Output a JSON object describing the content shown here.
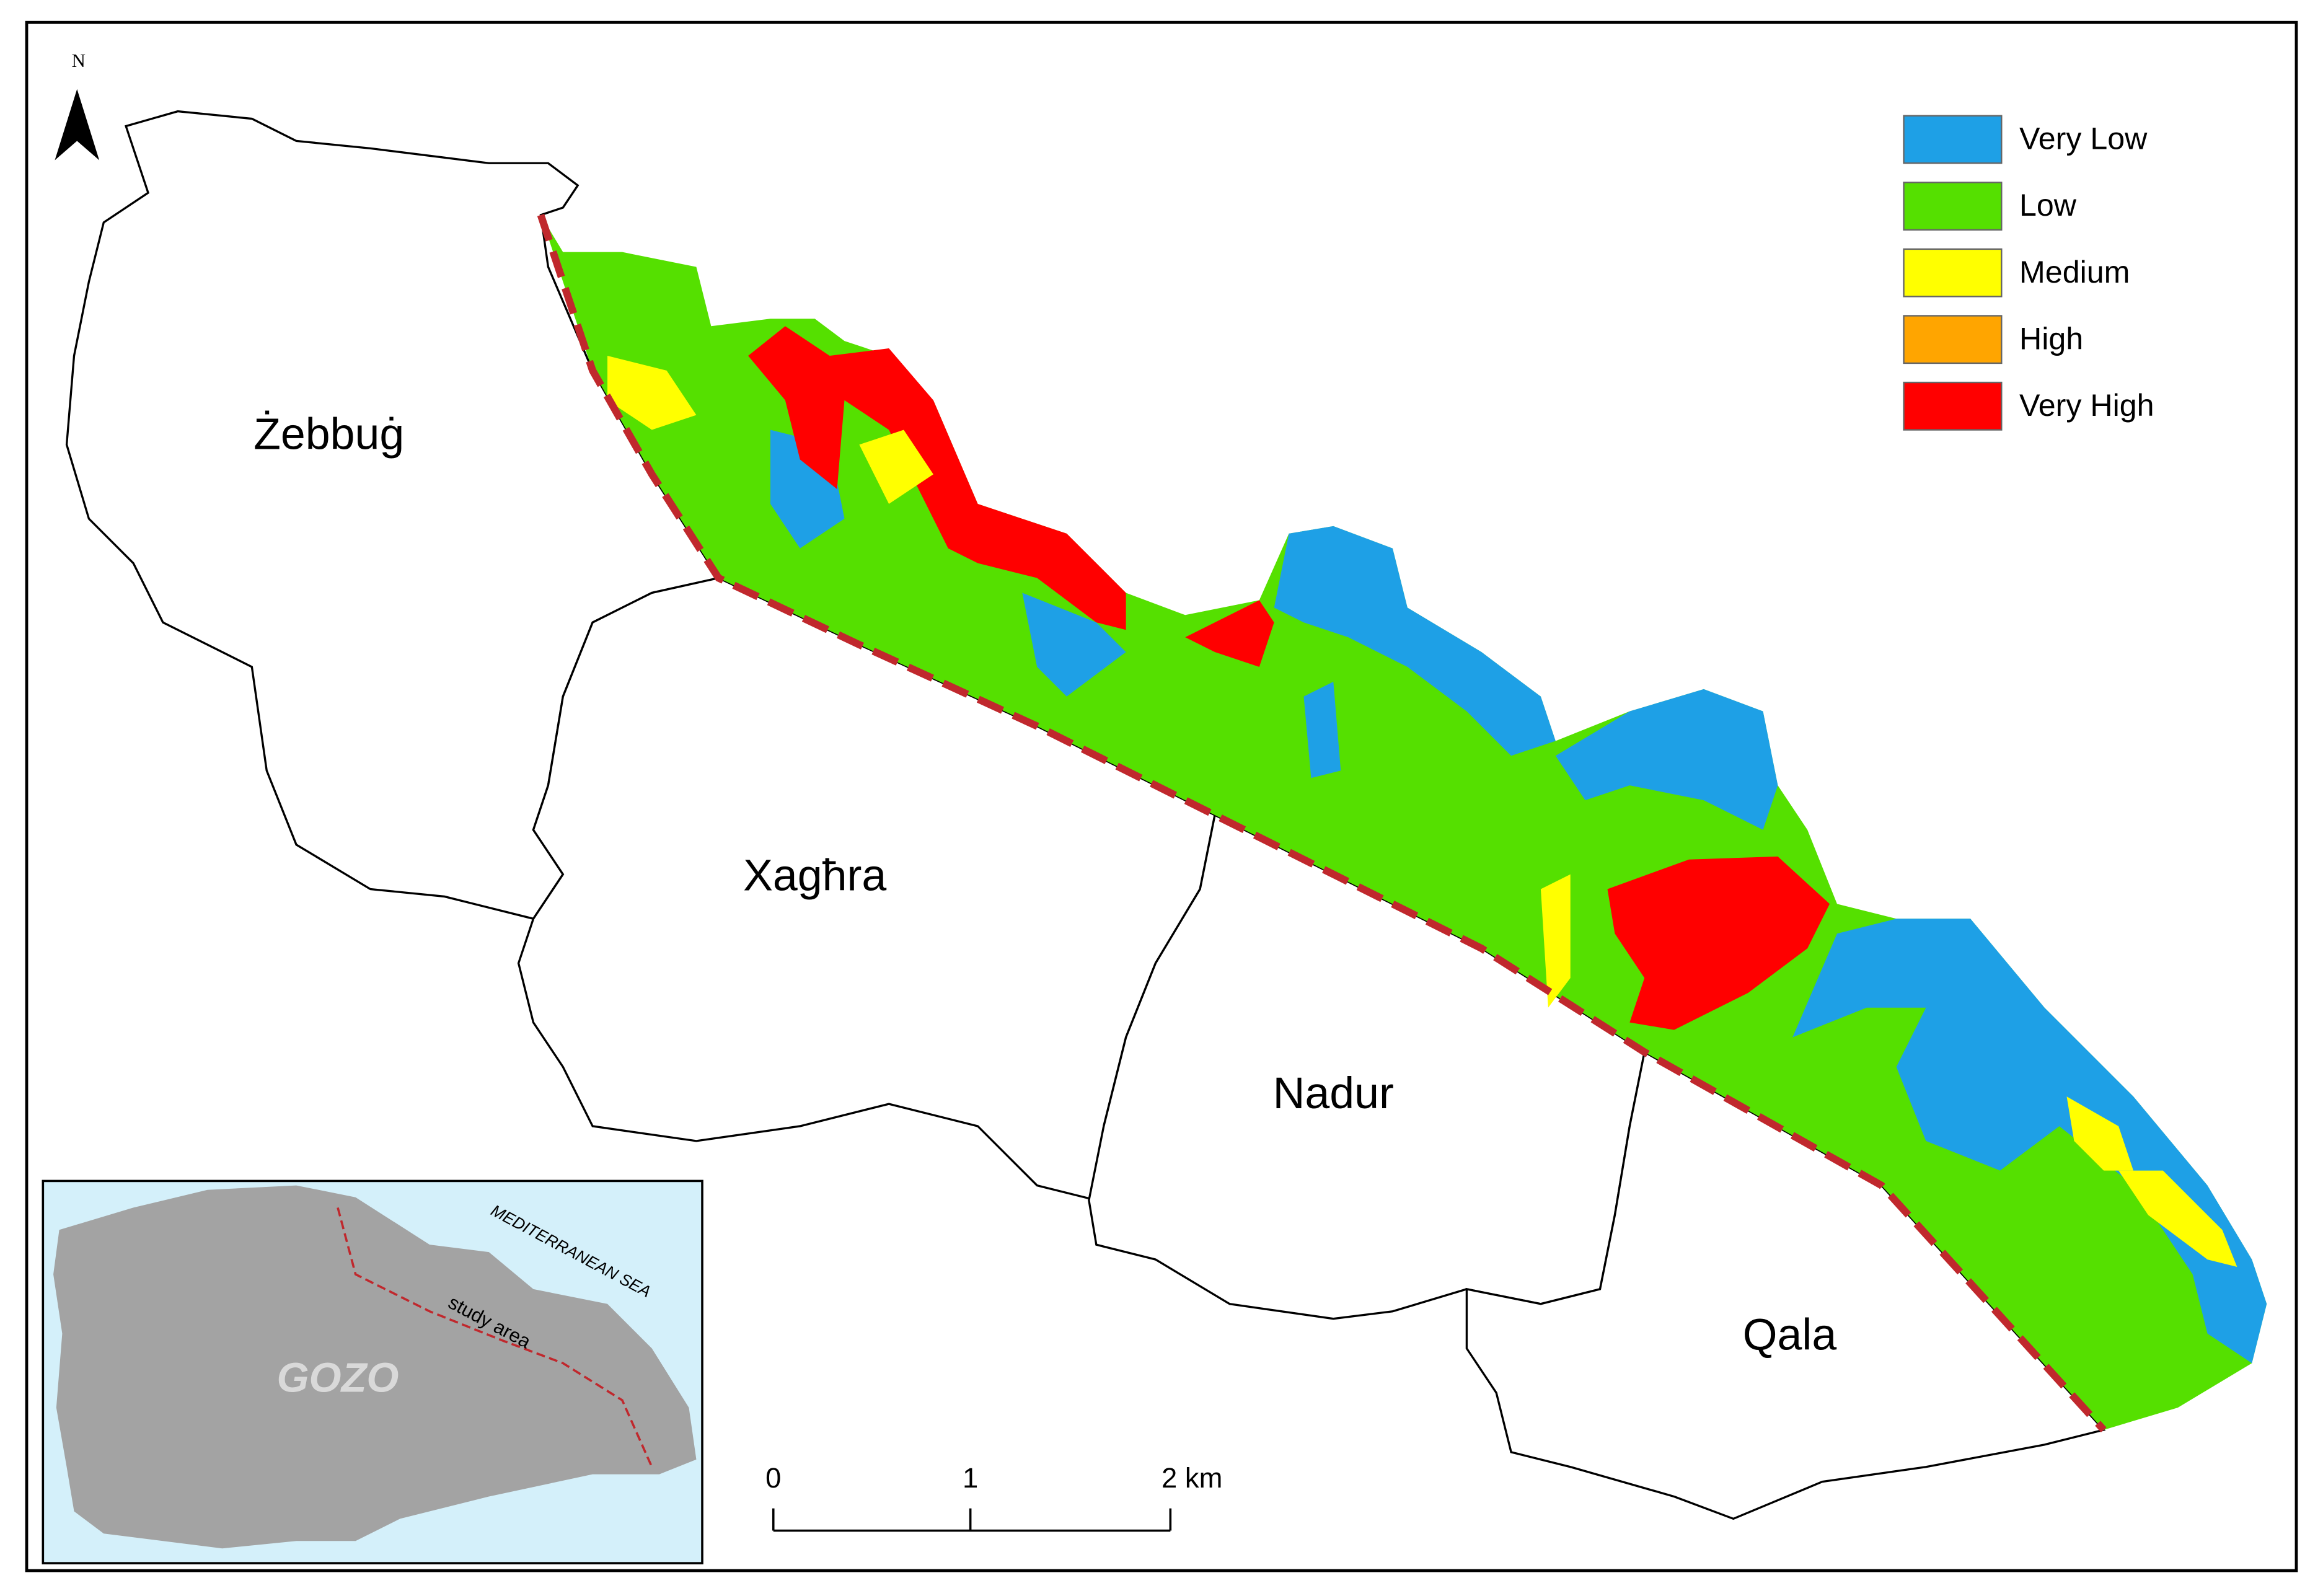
{
  "north_arrow": {
    "label": "N"
  },
  "legend": {
    "items": [
      {
        "label": "Very Low",
        "color": "#1ea0e6"
      },
      {
        "label": "Low",
        "color": "#55e000"
      },
      {
        "label": "Medium",
        "color": "#ffff00"
      },
      {
        "label": "High",
        "color": "#ffa500"
      },
      {
        "label": "Very High",
        "color": "#ff0000"
      }
    ]
  },
  "places": [
    "Żebbuġ",
    "Xagħra",
    "Nadur",
    "Qala"
  ],
  "inset": {
    "sea_label": "MEDITERRANEAN SEA",
    "study_label": "study area",
    "island_label": "GOZO"
  },
  "scale_bar": {
    "labels": [
      "0",
      "1",
      "2 km"
    ]
  }
}
